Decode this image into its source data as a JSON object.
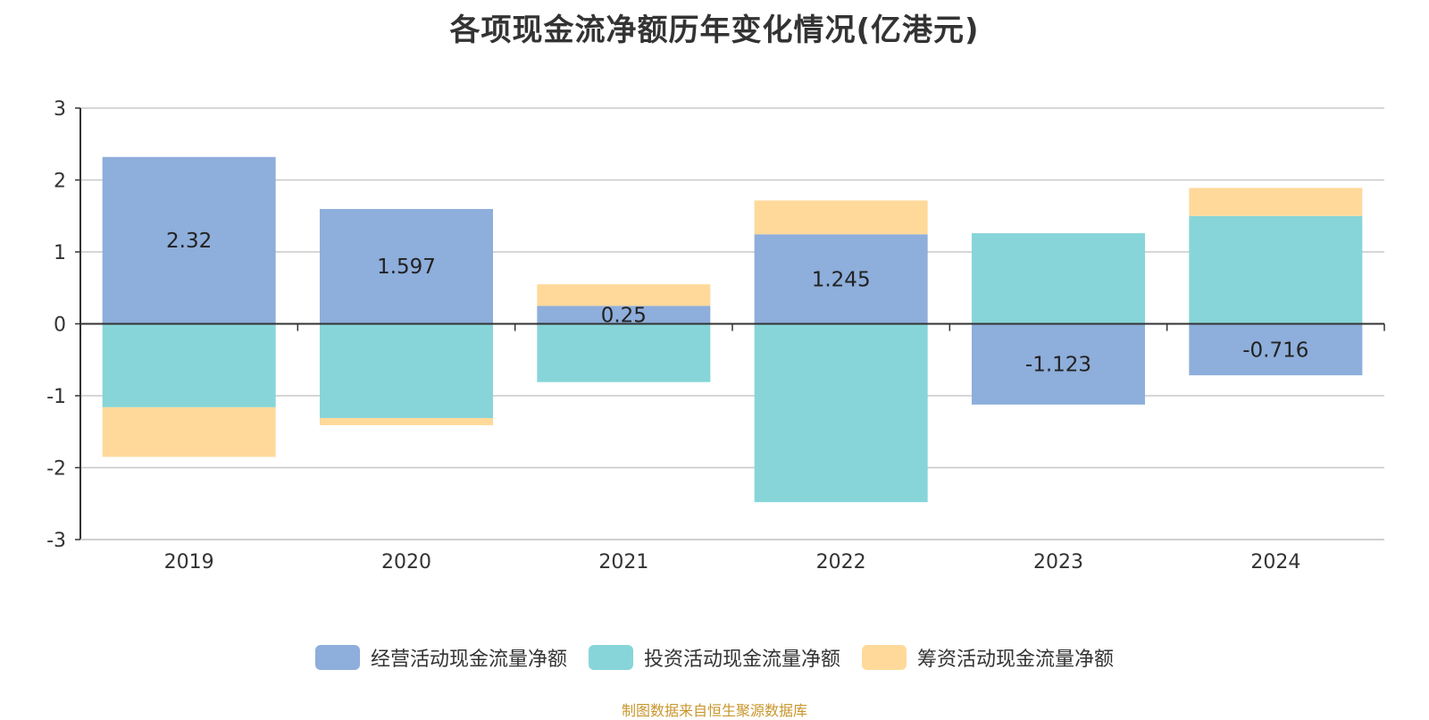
{
  "source_note": "制图数据来自恒生聚源数据库",
  "colors": {
    "operating": "#8eaedb",
    "investing": "#87d5d8",
    "financing": "#ffd99a",
    "grid": "#c8c8c8",
    "axis": "#333333",
    "text": "#333333"
  },
  "chart_data": {
    "type": "bar",
    "stacked": true,
    "title": "各项现金流净额历年变化情况(亿港元)",
    "xlabel": "",
    "ylabel": "",
    "categories": [
      "2019",
      "2020",
      "2021",
      "2022",
      "2023",
      "2024"
    ],
    "ylim": [
      -3,
      3
    ],
    "yticks": [
      3,
      2,
      1,
      0,
      -1,
      -2,
      -3
    ],
    "grid": true,
    "legend_position": "bottom",
    "series": [
      {
        "name": "经营活动现金流量净额",
        "key": "operating",
        "values": [
          2.32,
          1.597,
          0.25,
          1.245,
          -1.123,
          -0.716
        ],
        "data_labels": [
          "2.32",
          "1.597",
          "0.25",
          "1.245",
          "-1.123",
          "-0.716"
        ]
      },
      {
        "name": "投资活动现金流量净额",
        "key": "investing",
        "values": [
          -1.16,
          -1.31,
          -0.81,
          -2.48,
          1.26,
          1.5
        ]
      },
      {
        "name": "筹资活动现金流量净额",
        "key": "financing",
        "values": [
          -0.69,
          -0.1,
          0.3,
          0.47,
          0,
          0.39
        ]
      }
    ]
  }
}
